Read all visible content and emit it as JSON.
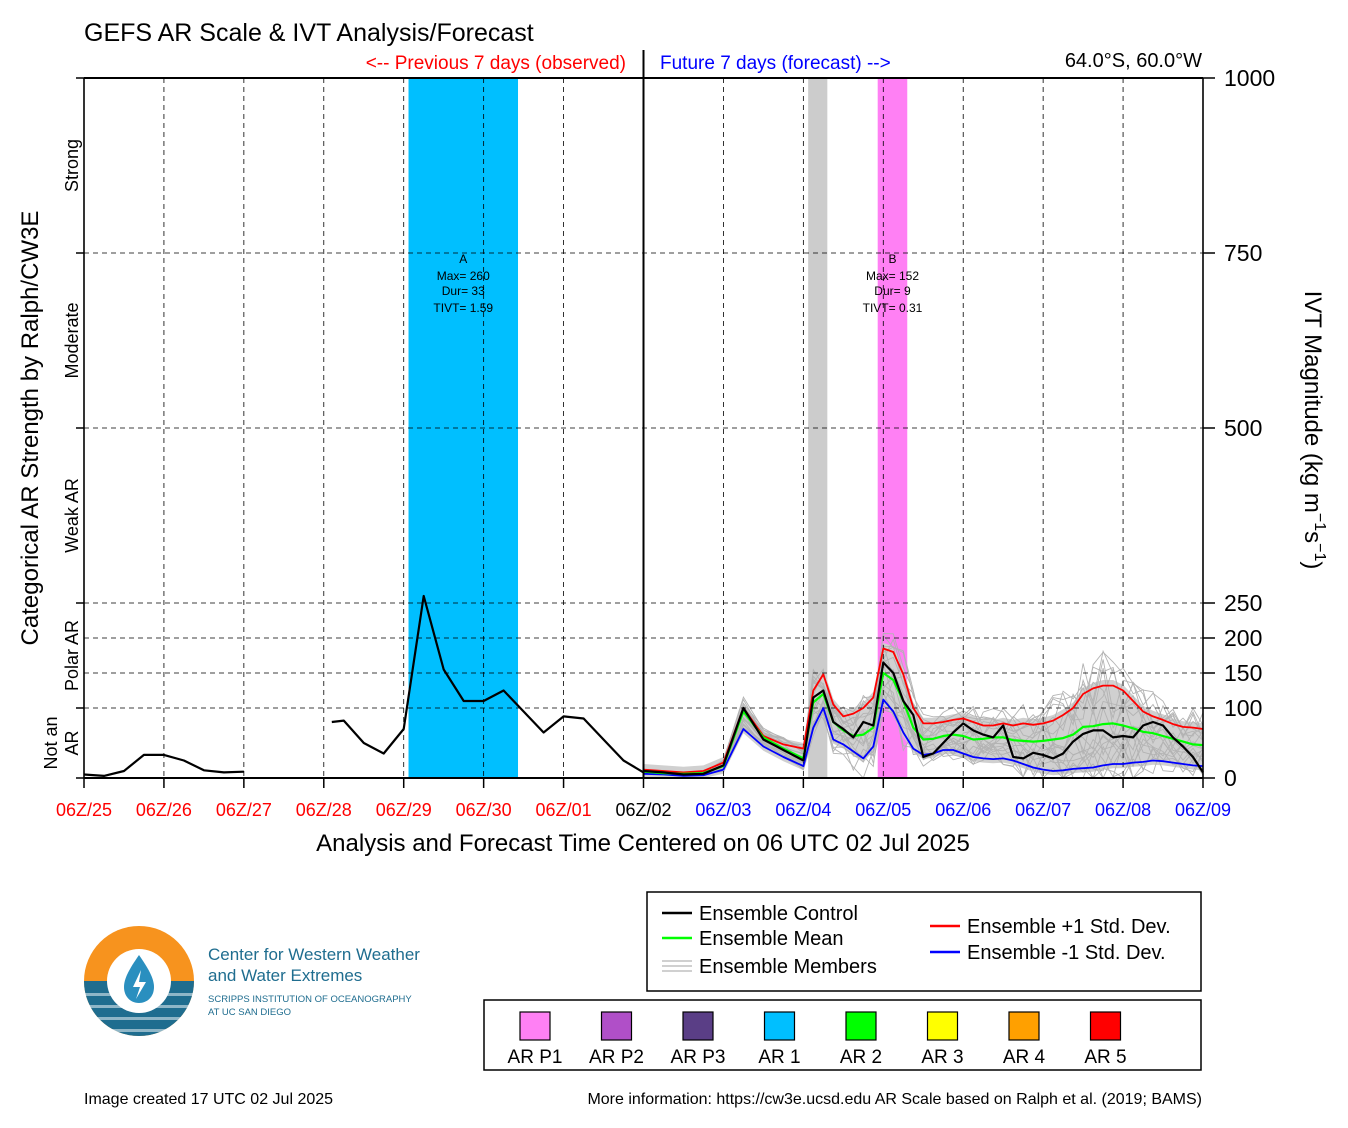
{
  "title": "GEFS AR Scale & IVT Analysis/Forecast",
  "header": {
    "previous": "<-- Previous 7 days (observed)",
    "future": "Future 7 days (forecast) -->",
    "location": "64.0°S, 60.0°W"
  },
  "colors": {
    "previous": "#ff0000",
    "future": "#0000ff",
    "control": "#000000",
    "mean": "#00ff00",
    "plus_std": "#ff0000",
    "minus_std": "#0000ff",
    "members": "#b3b3b3",
    "spread": "#d0d0d0"
  },
  "left_axis": {
    "title": "Categorical AR Strength by Ralph/CW3E",
    "categories": [
      {
        "label": "Strong",
        "range": [
          750,
          1000
        ]
      },
      {
        "label": "Moderate",
        "range": [
          500,
          750
        ]
      },
      {
        "label": "Weak AR",
        "range": [
          250,
          500
        ]
      },
      {
        "label": "Polar AR",
        "range": [
          100,
          250
        ]
      },
      {
        "label": "Not an AR",
        "lines": [
          "Not an",
          "AR"
        ],
        "range": [
          0,
          100
        ]
      }
    ]
  },
  "xlabel": "Analysis and Forecast Time Centered on 06 UTC 02 Jul 2025",
  "footer": {
    "created": "Image created 17 UTC 02 Jul 2025",
    "more_info": "More information: https://cw3e.ucsd.edu AR Scale based on Ralph et al. (2019; BAMS)"
  },
  "logo": {
    "line1": "Center for Western Weather",
    "line2": "and Water Extremes",
    "line3": "SCRIPPS INSTITUTION OF OCEANOGRAPHY",
    "line4": "AT UC SAN DIEGO"
  },
  "legend": {
    "lines": [
      {
        "label": "Ensemble Control",
        "color": "#000000"
      },
      {
        "label": "Ensemble Mean",
        "color": "#00ff00"
      },
      {
        "label": "Ensemble Members",
        "color": "#b3b3b3"
      },
      {
        "label": "Ensemble +1 Std. Dev.",
        "color": "#ff0000"
      },
      {
        "label": "Ensemble -1 Std. Dev.",
        "color": "#0000ff"
      }
    ],
    "categories": [
      {
        "label": "AR P1",
        "color": "#ff80f4"
      },
      {
        "label": "AR P2",
        "color": "#b04fc8"
      },
      {
        "label": "AR P3",
        "color": "#5a3e86"
      },
      {
        "label": "AR 1",
        "color": "#00bfff"
      },
      {
        "label": "AR 2",
        "color": "#00ff00"
      },
      {
        "label": "AR 3",
        "color": "#ffff00"
      },
      {
        "label": "AR 4",
        "color": "#ffa000"
      },
      {
        "label": "AR 5",
        "color": "#ff0000"
      }
    ]
  },
  "chart_data": {
    "type": "line",
    "title": "GEFS AR Scale & IVT Analysis/Forecast",
    "xlabel": "Analysis and Forecast Time Centered on 06 UTC 02 Jul 2025",
    "ylabel": "IVT Magnitude (kg m⁻¹s⁻¹)",
    "ylabel_parts": {
      "main": "IVT Magnitude (kg m",
      "sup1": "−1",
      "mid": "s",
      "sup2": "−1",
      "end": ")"
    },
    "x_range_days": [
      0,
      14
    ],
    "x_ticks": [
      {
        "label": "06Z/25",
        "group": "past"
      },
      {
        "label": "06Z/26",
        "group": "past"
      },
      {
        "label": "06Z/27",
        "group": "past"
      },
      {
        "label": "06Z/28",
        "group": "past"
      },
      {
        "label": "06Z/29",
        "group": "past"
      },
      {
        "label": "06Z/30",
        "group": "past"
      },
      {
        "label": "06Z/01",
        "group": "past"
      },
      {
        "label": "06Z/02",
        "group": "now"
      },
      {
        "label": "06Z/03",
        "group": "future"
      },
      {
        "label": "06Z/04",
        "group": "future"
      },
      {
        "label": "06Z/05",
        "group": "future"
      },
      {
        "label": "06Z/06",
        "group": "future"
      },
      {
        "label": "06Z/07",
        "group": "future"
      },
      {
        "label": "06Z/08",
        "group": "future"
      },
      {
        "label": "06Z/09",
        "group": "future"
      }
    ],
    "y_range": [
      0,
      1000
    ],
    "y_ticks": [
      0,
      100,
      150,
      200,
      250,
      500,
      750,
      1000
    ],
    "grid": true,
    "ar_events": [
      {
        "start_day": 4.06,
        "end_day": 5.43,
        "color": "#00bfff",
        "label": "A",
        "max": "Max= 260",
        "dur": "Dur= 33",
        "tivt": "TIVT= 1.59"
      },
      {
        "start_day": 9.06,
        "end_day": 9.3,
        "color": "#cccccc"
      },
      {
        "start_day": 9.93,
        "end_day": 10.3,
        "color": "#ff80f4",
        "label": "B",
        "max": "Max= 152",
        "dur": "Dur= 9",
        "tivt": "TIVT= 0.31"
      }
    ],
    "observed_segments": [
      {
        "x": [
          0,
          0.25,
          0.5,
          0.75,
          1.0,
          1.25,
          1.5,
          1.75,
          2.0
        ],
        "y": [
          5,
          3,
          10,
          33,
          33,
          25,
          11,
          8,
          9
        ]
      },
      {
        "x": [
          3.1,
          3.25,
          3.5,
          3.75,
          4.0,
          4.25,
          4.5,
          4.75,
          5.0,
          5.25,
          5.5,
          5.75,
          6.0,
          6.25,
          6.5,
          6.75,
          7.0
        ],
        "y": [
          80,
          82,
          50,
          35,
          70,
          260,
          155,
          110,
          110,
          125,
          95,
          65,
          88,
          85,
          55,
          25,
          8
        ]
      }
    ],
    "forecast_x": [
      7.0,
      7.25,
      7.5,
      7.75,
      8.0,
      8.25,
      8.5,
      8.75,
      9.0,
      9.125,
      9.25,
      9.375,
      9.5,
      9.625,
      9.75,
      9.875,
      10.0,
      10.125,
      10.25,
      10.375,
      10.5,
      10.625,
      10.75,
      10.875,
      11.0,
      11.125,
      11.25,
      11.375,
      11.5,
      11.625,
      11.75,
      11.875,
      12.0,
      12.125,
      12.25,
      12.375,
      12.5,
      12.625,
      12.75,
      12.875,
      13.0,
      13.125,
      13.25,
      13.375,
      13.5,
      13.625,
      13.75,
      13.875,
      14.0
    ],
    "series": [
      {
        "name": "Ensemble Control",
        "color": "#000000",
        "width": 2.2,
        "values": [
          10,
          8,
          5,
          6,
          18,
          100,
          55,
          40,
          25,
          115,
          125,
          80,
          70,
          58,
          80,
          75,
          165,
          150,
          110,
          90,
          30,
          35,
          50,
          65,
          78,
          68,
          62,
          58,
          75,
          30,
          28,
          36,
          33,
          28,
          35,
          52,
          63,
          68,
          68,
          58,
          60,
          58,
          75,
          80,
          75,
          58,
          45,
          30,
          8
        ]
      },
      {
        "name": "Ensemble Mean",
        "color": "#00ff00",
        "width": 2.2,
        "values": [
          9,
          7,
          6,
          7,
          17,
          95,
          58,
          42,
          28,
          108,
          120,
          80,
          68,
          60,
          62,
          72,
          150,
          140,
          110,
          72,
          55,
          56,
          60,
          62,
          60,
          55,
          56,
          58,
          58,
          54,
          53,
          52,
          53,
          55,
          57,
          62,
          73,
          74,
          77,
          78,
          75,
          71,
          66,
          64,
          60,
          56,
          52,
          48,
          47
        ]
      },
      {
        "name": "Ensemble +1 Std. Dev.",
        "color": "#ff0000",
        "width": 1.8,
        "values": [
          12,
          10,
          8,
          10,
          22,
          100,
          60,
          48,
          42,
          125,
          148,
          105,
          88,
          92,
          100,
          115,
          185,
          180,
          148,
          100,
          78,
          78,
          80,
          83,
          85,
          80,
          75,
          75,
          78,
          75,
          78,
          76,
          78,
          82,
          90,
          100,
          120,
          128,
          132,
          132,
          125,
          110,
          95,
          88,
          83,
          77,
          73,
          72,
          70
        ]
      },
      {
        "name": "Ensemble -1 Std. Dev.",
        "color": "#0000ff",
        "width": 1.8,
        "values": [
          6,
          5,
          3,
          4,
          12,
          70,
          45,
          30,
          17,
          72,
          100,
          55,
          48,
          38,
          28,
          45,
          112,
          95,
          65,
          42,
          33,
          35,
          40,
          40,
          35,
          30,
          28,
          27,
          28,
          25,
          20,
          15,
          12,
          10,
          11,
          13,
          14,
          15,
          18,
          20,
          20,
          22,
          23,
          25,
          24,
          22,
          20,
          18,
          17
        ]
      }
    ]
  }
}
